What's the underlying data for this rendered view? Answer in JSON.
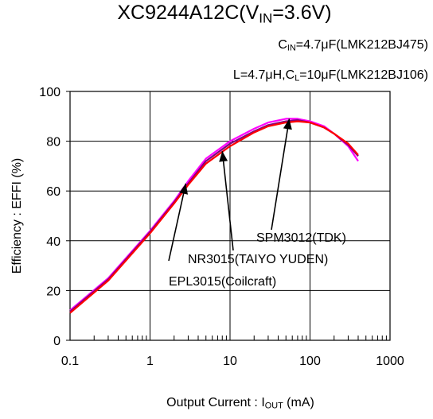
{
  "title": {
    "main": "XC9244A12C(V",
    "sub": "IN",
    "tail": "=3.6V)"
  },
  "conditions": [
    {
      "pre": "C",
      "sub": "IN",
      "post": "=4.7μF(LMK212BJ475)"
    },
    {
      "pre": "L=4.7μH,C",
      "sub": "L",
      "post": "=10μF(LMK212BJ106)"
    }
  ],
  "xlabel": {
    "pre": "Output Current : I",
    "sub": "OUT",
    "post": " (mA)"
  },
  "chart_data": {
    "type": "line",
    "title": "XC9244A12C(VIN=3.6V)",
    "xlabel": "Output Current : IOUT (mA)",
    "ylabel": "Efficiency : EFFI (%)",
    "xscale": "log",
    "xlim": [
      0.1,
      1000
    ],
    "ylim": [
      0,
      100
    ],
    "xticks": [
      "0.1",
      "1",
      "10",
      "100",
      "1000"
    ],
    "yticks": [
      "0",
      "20",
      "40",
      "60",
      "80",
      "100"
    ],
    "grid": true,
    "series": [
      {
        "name": "SPM3012(TDK)",
        "color": "#ff00ff",
        "x": [
          0.1,
          0.3,
          1,
          2,
          3,
          5,
          10,
          20,
          30,
          50,
          70,
          100,
          150,
          200,
          300,
          400
        ],
        "y": [
          12,
          25,
          44,
          56,
          64,
          73,
          80,
          85,
          87.5,
          89,
          89,
          88,
          86,
          83,
          78,
          72
        ]
      },
      {
        "name": "NR3015(TAIYO YUDEN)",
        "color": "#800080",
        "x": [
          0.1,
          0.3,
          1,
          2,
          3,
          5,
          10,
          20,
          30,
          50,
          70,
          100,
          150,
          200,
          300,
          400
        ],
        "y": [
          11.5,
          24.5,
          43.5,
          55.5,
          63,
          72,
          79,
          84,
          86.5,
          88,
          88.5,
          87.5,
          85.5,
          83,
          78.5,
          74
        ]
      },
      {
        "name": "EPL3015(Coilcraft)",
        "color": "#ff0000",
        "x": [
          0.1,
          0.3,
          1,
          2,
          3,
          5,
          10,
          20,
          30,
          50,
          70,
          100,
          150,
          200,
          300,
          400
        ],
        "y": [
          11,
          24,
          43,
          55,
          62.5,
          71,
          78,
          83.5,
          86,
          87.5,
          88,
          87.5,
          85.5,
          83,
          79,
          74.5
        ]
      }
    ],
    "annotations": [
      {
        "text": "SPM3012(TDK)",
        "point": [
          55,
          89
        ]
      },
      {
        "text": "NR3015(TAIYO YUDEN)",
        "point": [
          8,
          76
        ]
      },
      {
        "text": "EPL3015(Coilcraft)",
        "point": [
          2.8,
          63
        ]
      }
    ]
  }
}
